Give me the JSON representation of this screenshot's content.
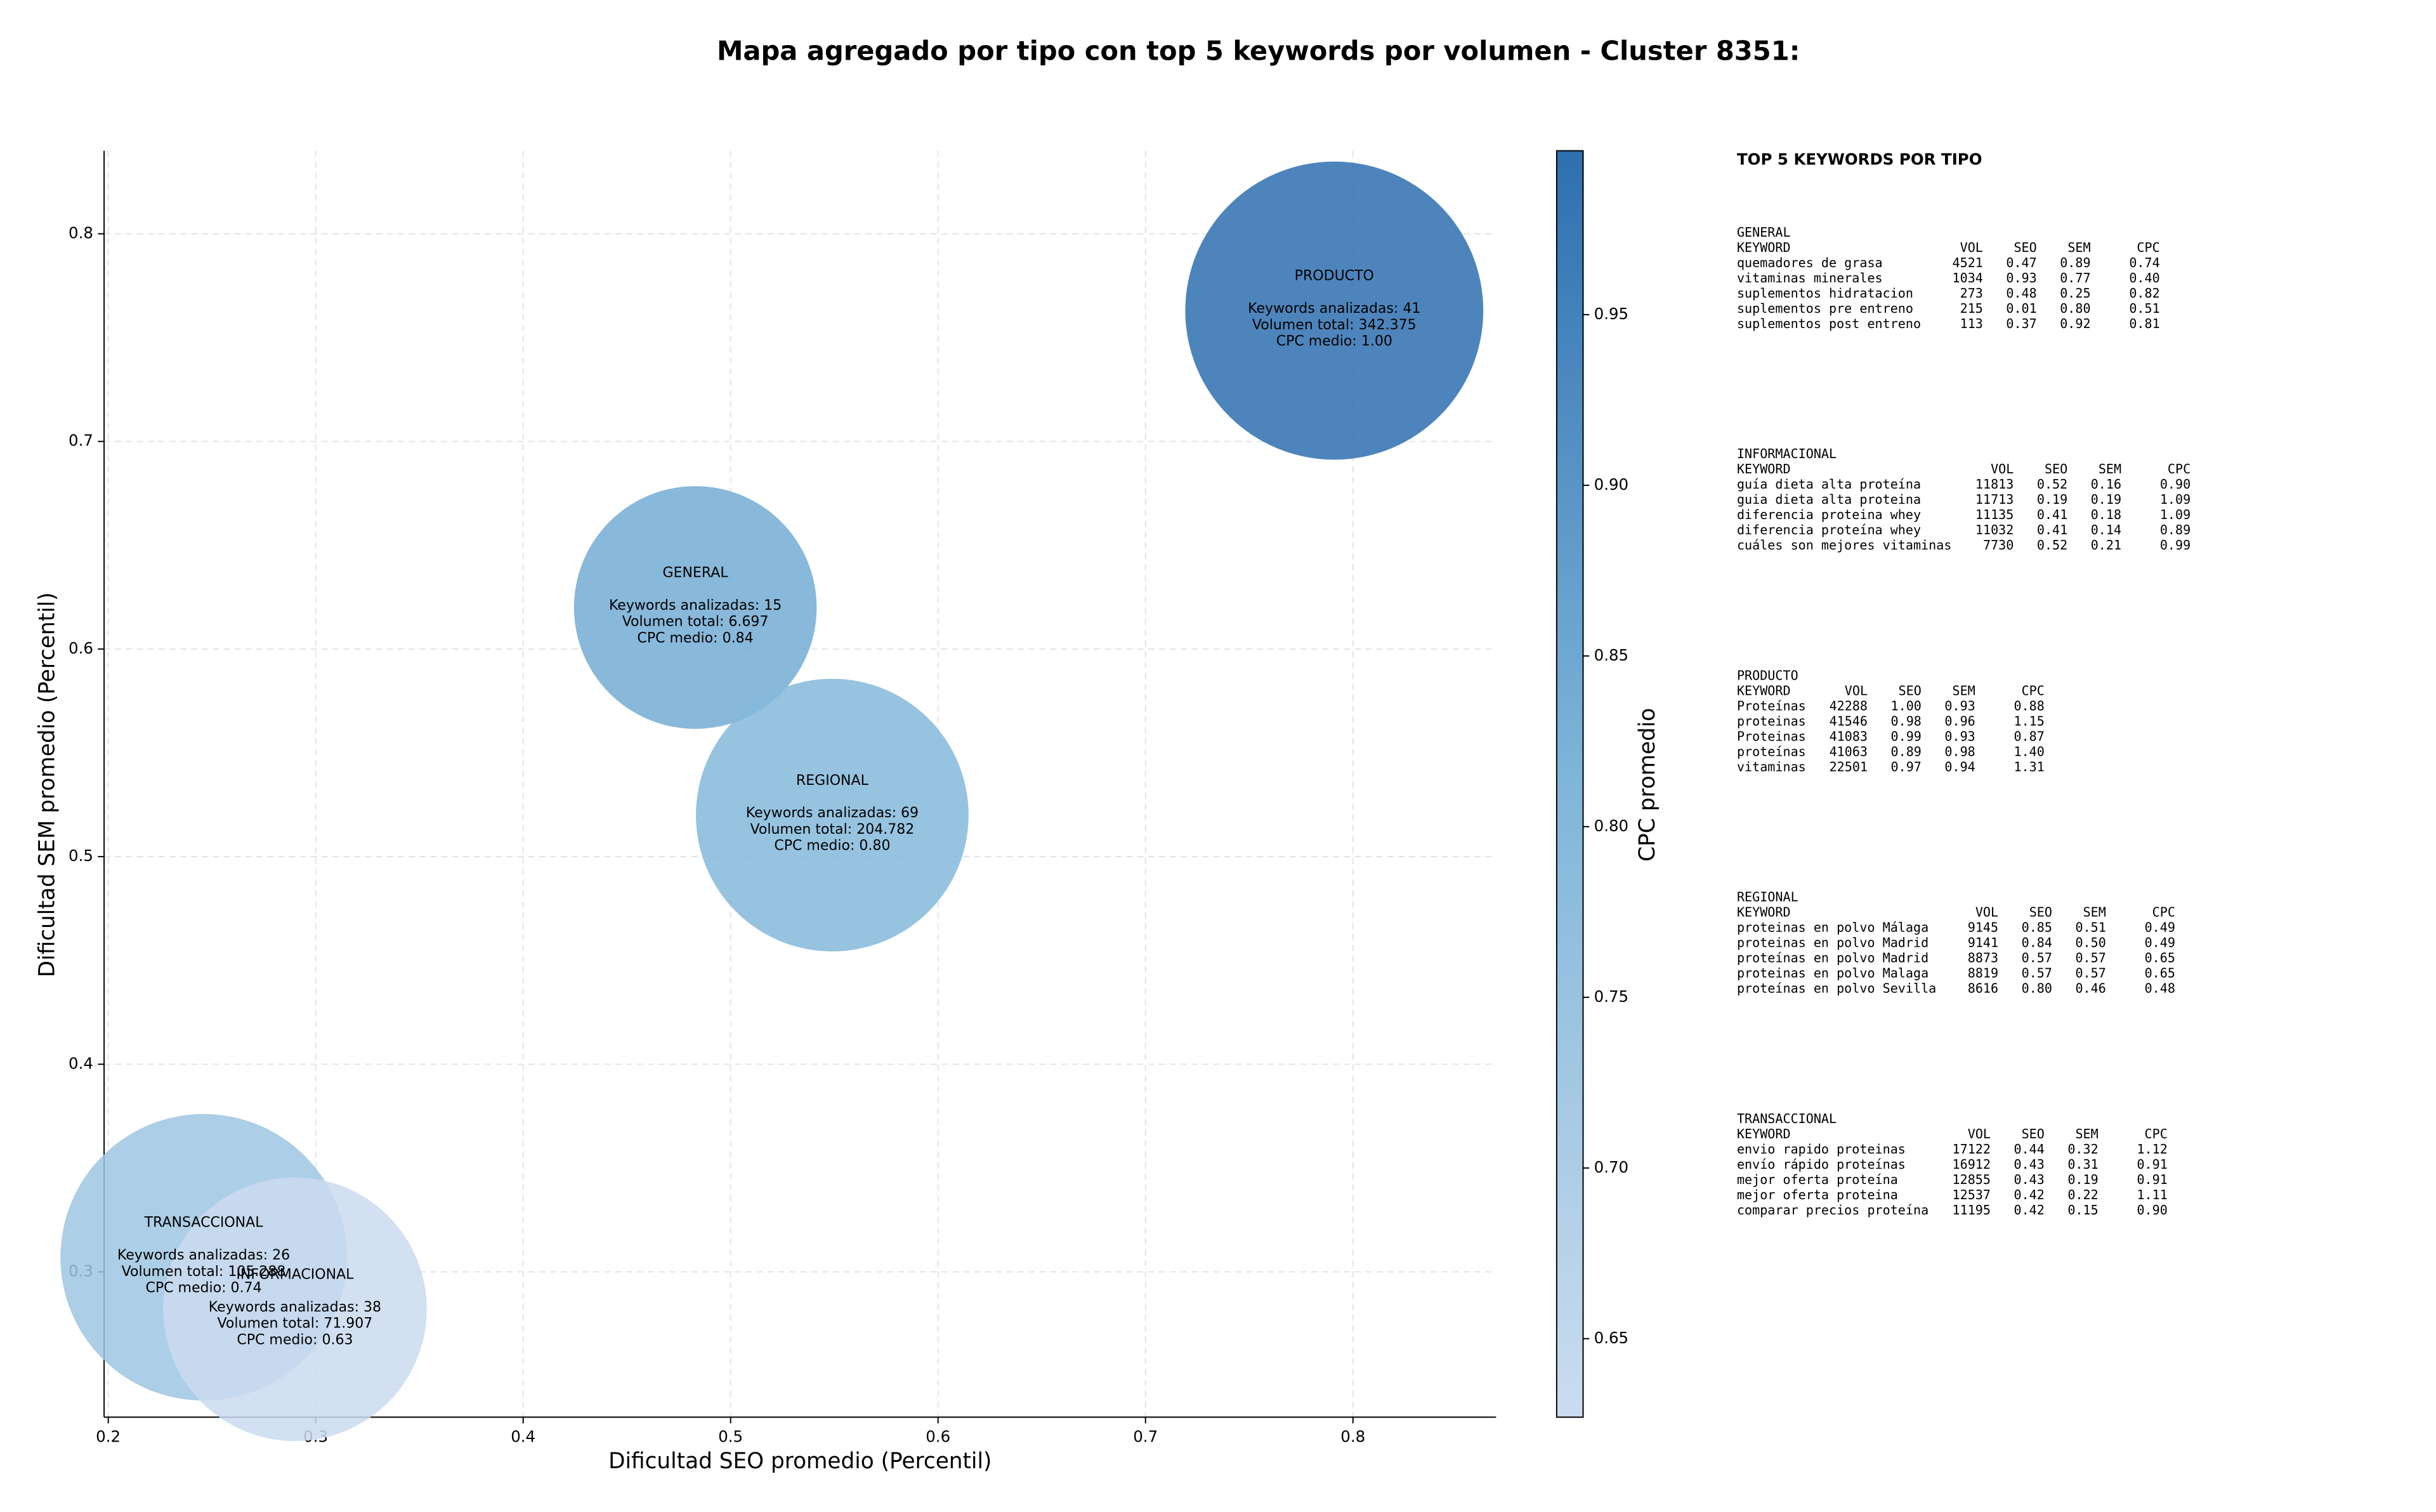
{
  "chart_data": {
    "type": "bubble",
    "title": "Mapa agregado por tipo con top 5 keywords por volumen - Cluster 8351:",
    "x_label": "Dificultad SEO promedio (Percentil)",
    "y_label": "Dificultad SEM promedio (Percentil)",
    "colorbar_label": "CPC promedio",
    "names": [
      "PRODUCTO",
      "GENERAL",
      "REGIONAL",
      "TRANSACCIONAL",
      "INFORMACIONAL"
    ],
    "x": [
      0.791,
      0.483,
      0.549,
      0.246,
      0.29
    ],
    "y": [
      0.763,
      0.62,
      0.52,
      0.307,
      0.282
    ],
    "sizes": [
      9200,
      6100,
      7700,
      8500,
      7200
    ],
    "cpc": [
      1.0,
      0.84,
      0.8,
      0.74,
      0.63
    ],
    "annotations": [
      [
        "Keywords analizadas: 41",
        "Volumen total: 342.375",
        "CPC medio: 1.00"
      ],
      [
        "Keywords analizadas: 15",
        "Volumen total: 6.697",
        "CPC medio: 0.84"
      ],
      [
        "Keywords analizadas: 69",
        "Volumen total: 204.782",
        "CPC medio: 0.80"
      ],
      [
        "Keywords analizadas: 26",
        "Volumen total: 105.288",
        "CPC medio: 0.74"
      ],
      [
        "Keywords analizadas: 38",
        "Volumen total: 71.907",
        "CPC medio: 0.63"
      ]
    ],
    "xlim": [
      0.198,
      0.869
    ],
    "ylim": [
      0.23,
      0.84
    ],
    "xticks": [
      0.2,
      0.3,
      0.4,
      0.5,
      0.6,
      0.7,
      0.8
    ],
    "yticks": [
      0.3,
      0.4,
      0.5,
      0.6,
      0.7,
      0.8
    ],
    "clim": [
      0.627,
      0.998
    ],
    "cticks": [
      0.65,
      {
        "value": 0.7,
        "label": "0.70"
      },
      0.75,
      {
        "value": 0.8,
        "label": "0.80"
      },
      0.85,
      {
        "value": 0.9,
        "label": "0.90"
      },
      0.95
    ],
    "colormap": [
      "#cbdcef",
      "#7fb6d9",
      "#2e6fb0"
    ],
    "alpha": 0.85,
    "grid": true
  },
  "panel": {
    "title": "TOP 5 KEYWORDS POR TIPO",
    "header": [
      "KEYWORD",
      "VOL",
      "SEO",
      "SEM",
      "CPC"
    ],
    "groups": [
      {
        "name": "GENERAL",
        "rows": [
          [
            "quemadores de grasa",
            "4521",
            "0.47",
            "0.89",
            "0.74"
          ],
          [
            "vitaminas minerales",
            "1034",
            "0.93",
            "0.77",
            "0.40"
          ],
          [
            "suplementos hidratacion",
            "273",
            "0.48",
            "0.25",
            "0.82"
          ],
          [
            "suplementos pre entreno",
            "215",
            "0.01",
            "0.80",
            "0.51"
          ],
          [
            "suplementos post entreno",
            "113",
            "0.37",
            "0.92",
            "0.81"
          ]
        ]
      },
      {
        "name": "INFORMACIONAL",
        "rows": [
          [
            "guía dieta alta proteína",
            "11813",
            "0.52",
            "0.16",
            "0.90"
          ],
          [
            "guia dieta alta proteina",
            "11713",
            "0.19",
            "0.19",
            "1.09"
          ],
          [
            "diferencia proteina whey",
            "11135",
            "0.41",
            "0.18",
            "1.09"
          ],
          [
            "diferencia proteína whey",
            "11032",
            "0.41",
            "0.14",
            "0.89"
          ],
          [
            "cuáles son mejores vitaminas",
            "7730",
            "0.52",
            "0.21",
            "0.99"
          ]
        ]
      },
      {
        "name": "PRODUCTO",
        "rows": [
          [
            "Proteínas",
            "42288",
            "1.00",
            "0.93",
            "0.88"
          ],
          [
            "proteinas",
            "41546",
            "0.98",
            "0.96",
            "1.15"
          ],
          [
            "Proteinas",
            "41083",
            "0.99",
            "0.93",
            "0.87"
          ],
          [
            "proteínas",
            "41063",
            "0.89",
            "0.98",
            "1.40"
          ],
          [
            "vitaminas",
            "22501",
            "0.97",
            "0.94",
            "1.31"
          ]
        ]
      },
      {
        "name": "REGIONAL",
        "rows": [
          [
            "proteinas en polvo Málaga",
            "9145",
            "0.85",
            "0.51",
            "0.49"
          ],
          [
            "proteinas en polvo Madrid",
            "9141",
            "0.84",
            "0.50",
            "0.49"
          ],
          [
            "proteínas en polvo Madrid",
            "8873",
            "0.57",
            "0.57",
            "0.65"
          ],
          [
            "proteinas en polvo Malaga",
            "8819",
            "0.57",
            "0.57",
            "0.65"
          ],
          [
            "proteínas en polvo Sevilla",
            "8616",
            "0.80",
            "0.46",
            "0.48"
          ]
        ]
      },
      {
        "name": "TRANSACCIONAL",
        "rows": [
          [
            "envio rapido proteinas",
            "17122",
            "0.44",
            "0.32",
            "1.12"
          ],
          [
            "envío rápido proteínas",
            "16912",
            "0.43",
            "0.31",
            "0.91"
          ],
          [
            "mejor oferta proteína",
            "12855",
            "0.43",
            "0.19",
            "0.91"
          ],
          [
            "mejor oferta proteina",
            "12537",
            "0.42",
            "0.22",
            "1.11"
          ],
          [
            "comparar precios proteína",
            "11195",
            "0.42",
            "0.15",
            "0.90"
          ]
        ]
      }
    ]
  }
}
